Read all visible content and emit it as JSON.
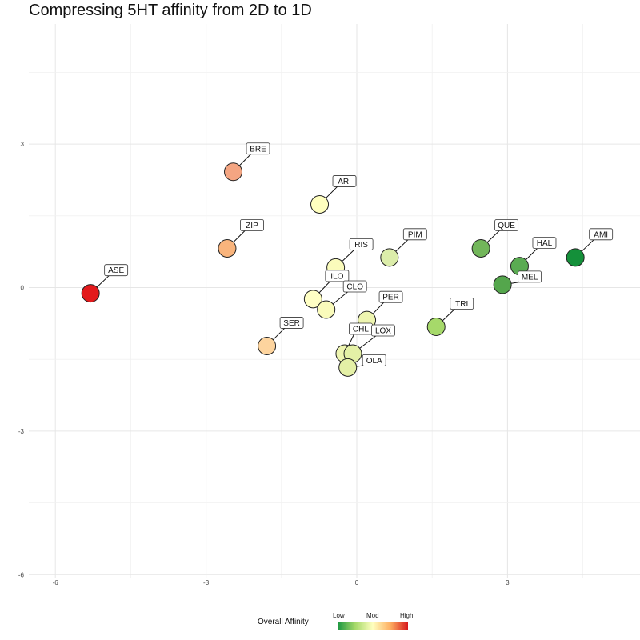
{
  "chart_data": {
    "type": "scatter",
    "title": "Compressing 5HT affinity from 2D to 1D",
    "xlabel": "",
    "ylabel": "",
    "xlim": [
      -6.6,
      5.8
    ],
    "ylim": [
      -6,
      6
    ],
    "x_ticks": [
      -6,
      -3,
      0,
      3
    ],
    "y_ticks": [
      3,
      0,
      -3,
      -6
    ],
    "tick_labels_x": [
      "-6",
      "-3",
      "0",
      "3"
    ],
    "tick_labels_y": [
      "3",
      "0",
      "-3",
      "-6"
    ],
    "grid": true,
    "legend": {
      "title": "Overall Affinity",
      "placement": "bottom",
      "labels": [
        "Low",
        "Mod",
        "High"
      ],
      "colors": [
        "#1a9641",
        "#ffffbf",
        "#d7191c"
      ]
    },
    "points": [
      {
        "label": "ASE",
        "x": -5.3,
        "y": -0.12,
        "color": "#e31a1c"
      },
      {
        "label": "BRE",
        "x": -2.46,
        "y": 2.42,
        "color": "#f4a582"
      },
      {
        "label": "ZIP",
        "x": -2.58,
        "y": 0.82,
        "color": "#f9b47c"
      },
      {
        "label": "SER",
        "x": -1.79,
        "y": -1.22,
        "color": "#fdd49e"
      },
      {
        "label": "ARI",
        "x": -0.74,
        "y": 1.74,
        "color": "#ffffbf"
      },
      {
        "label": "RIS",
        "x": -0.42,
        "y": 0.42,
        "color": "#fafbbb"
      },
      {
        "label": "ILO",
        "x": -0.87,
        "y": -0.24,
        "color": "#ffffc4"
      },
      {
        "label": "CLO",
        "x": -0.61,
        "y": -0.46,
        "color": "#fafbbb"
      },
      {
        "label": "PER",
        "x": 0.2,
        "y": -0.68,
        "color": "#eef5b0"
      },
      {
        "label": "CHL",
        "x": -0.24,
        "y": -1.38,
        "color": "#eef5b0"
      },
      {
        "label": "LOX",
        "x": -0.08,
        "y": -1.38,
        "color": "#e4f0a6"
      },
      {
        "label": "OLA",
        "x": -0.18,
        "y": -1.67,
        "color": "#e4f0a6"
      },
      {
        "label": "PIM",
        "x": 0.65,
        "y": 0.63,
        "color": "#dcedaa"
      },
      {
        "label": "TRI",
        "x": 1.58,
        "y": -0.82,
        "color": "#a6d96a"
      },
      {
        "label": "QUE",
        "x": 2.47,
        "y": 0.82,
        "color": "#72b65a"
      },
      {
        "label": "HAL",
        "x": 3.24,
        "y": 0.45,
        "color": "#5aab52"
      },
      {
        "label": "MEL",
        "x": 2.9,
        "y": 0.06,
        "color": "#54a64c"
      },
      {
        "label": "AMI",
        "x": 4.35,
        "y": 0.63,
        "color": "#14903a"
      }
    ]
  }
}
